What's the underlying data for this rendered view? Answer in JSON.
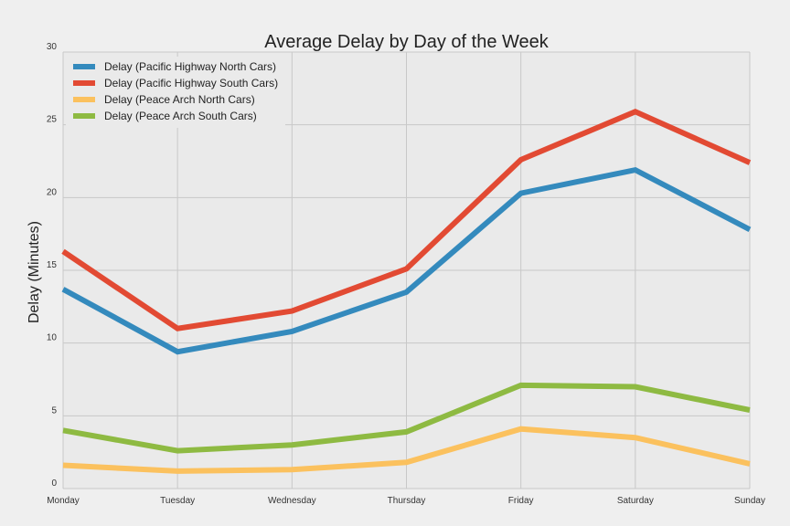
{
  "chart_data": {
    "type": "line",
    "title": "Average Delay by Day of the Week",
    "xlabel": "",
    "ylabel": "Delay (Minutes)",
    "categories": [
      "Monday",
      "Tuesday",
      "Wednesday",
      "Thursday",
      "Friday",
      "Saturday",
      "Sunday"
    ],
    "ylim": [
      0,
      30
    ],
    "yticks": [
      0,
      5,
      10,
      15,
      20,
      25,
      30
    ],
    "grid": true,
    "legend_position": "top-left",
    "series": [
      {
        "name": "Delay (Pacific Highway North Cars)",
        "color": "#348ABD",
        "values": [
          13.7,
          9.4,
          10.8,
          13.5,
          20.3,
          21.9,
          17.8
        ]
      },
      {
        "name": "Delay (Pacific Highway South Cars)",
        "color": "#E24A33",
        "values": [
          16.3,
          11.0,
          12.2,
          15.1,
          22.6,
          25.9,
          22.4
        ]
      },
      {
        "name": "Delay (Peace Arch North Cars)",
        "color": "#FBC15E",
        "values": [
          1.6,
          1.2,
          1.3,
          1.8,
          4.1,
          3.5,
          1.7
        ]
      },
      {
        "name": "Delay (Peace Arch South Cars)",
        "color": "#8EBA42",
        "values": [
          4.0,
          2.6,
          3.0,
          3.9,
          7.1,
          7.0,
          5.4
        ]
      }
    ]
  }
}
